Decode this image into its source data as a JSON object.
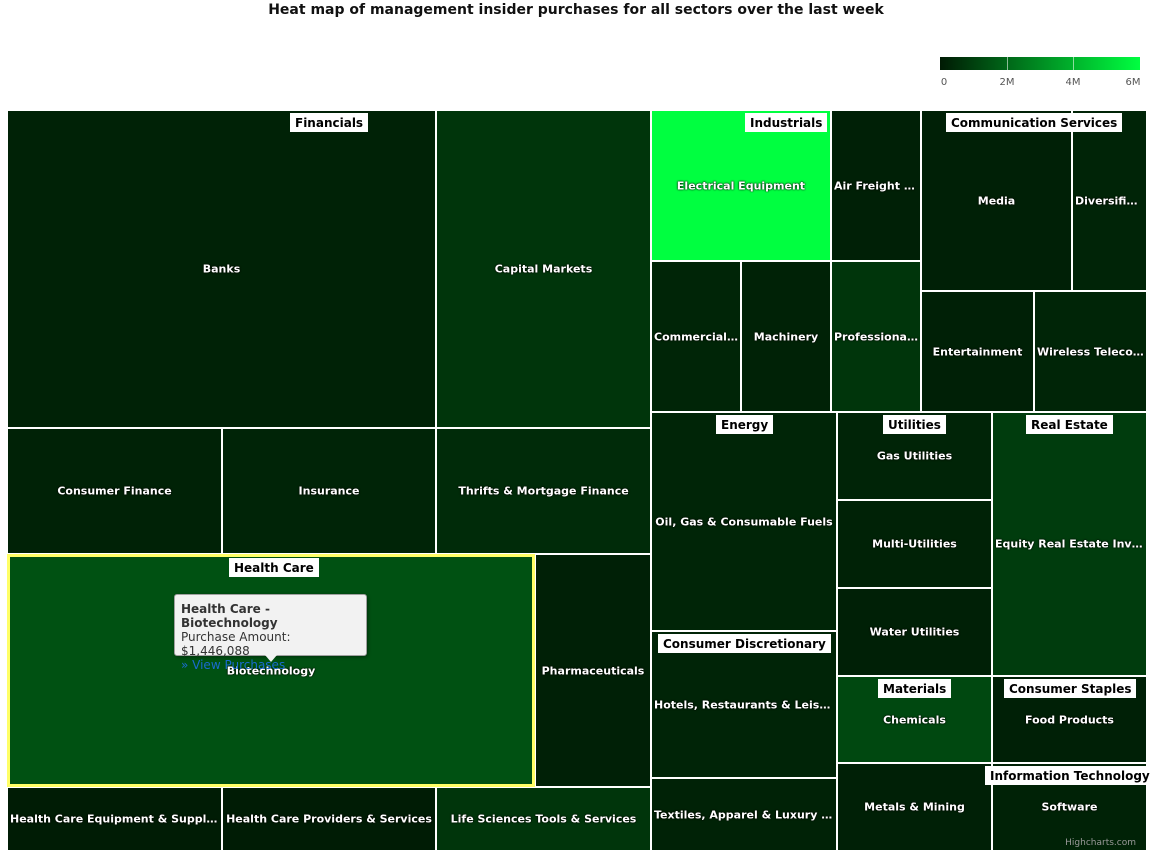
{
  "chart_data": {
    "type": "heatmap",
    "subtype": "treemap",
    "title": "Heat map of management insider purchases for all sectors over the last week",
    "color_axis": {
      "min": 0,
      "max": 6000000,
      "min_color": "#001a04",
      "max_color": "#00ff40",
      "tick_labels": [
        "0",
        "2M",
        "4M",
        "6M"
      ]
    },
    "sectors": [
      {
        "name": "Financials",
        "highlighted": false,
        "industries": [
          {
            "name": "Banks",
            "value": 200000
          },
          {
            "name": "Capital Markets",
            "value": 700000
          },
          {
            "name": "Consumer Finance",
            "value": 200000
          },
          {
            "name": "Insurance",
            "value": 250000
          },
          {
            "name": "Thrifts & Mortgage Finance",
            "value": 450000
          }
        ]
      },
      {
        "name": "Health Care",
        "highlighted": true,
        "industries": [
          {
            "name": "Biotechnology",
            "value": 1446088
          },
          {
            "name": "Pharmaceuticals",
            "value": 150000
          },
          {
            "name": "Health Care Equipment & Supplies",
            "value": 50000
          },
          {
            "name": "Health Care Providers & Services",
            "value": 50000
          },
          {
            "name": "Life Sciences Tools & Services",
            "value": 700000
          }
        ]
      },
      {
        "name": "Industrials",
        "highlighted": false,
        "industries": [
          {
            "name": "Electrical Equipment",
            "value": 6000000
          },
          {
            "name": "Air Freight & …",
            "value": 150000
          },
          {
            "name": "Commercial S…",
            "value": 300000
          },
          {
            "name": "Machinery",
            "value": 200000
          },
          {
            "name": "Professional …",
            "value": 700000
          }
        ]
      },
      {
        "name": "Communication Services",
        "highlighted": false,
        "industries": [
          {
            "name": "Media",
            "value": 150000
          },
          {
            "name": "Diversified…",
            "value": 250000
          },
          {
            "name": "Entertainment",
            "value": 150000
          },
          {
            "name": "Wireless Telecom…",
            "value": 300000
          }
        ]
      },
      {
        "name": "Energy",
        "highlighted": false,
        "industries": [
          {
            "name": "Oil, Gas & Consumable Fuels",
            "value": 300000
          }
        ]
      },
      {
        "name": "Utilities",
        "highlighted": false,
        "industries": [
          {
            "name": "Gas Utilities",
            "value": 250000
          },
          {
            "name": "Multi-Utilities",
            "value": 200000
          },
          {
            "name": "Water Utilities",
            "value": 150000
          }
        ]
      },
      {
        "name": "Real Estate",
        "highlighted": false,
        "industries": [
          {
            "name": "Equity Real Estate Invest…",
            "value": 900000
          }
        ]
      },
      {
        "name": "Consumer Discretionary",
        "highlighted": false,
        "industries": [
          {
            "name": "Hotels, Restaurants & Leisure",
            "value": 250000
          },
          {
            "name": "Textiles, Apparel & Luxury Go…",
            "value": 200000
          }
        ]
      },
      {
        "name": "Materials",
        "highlighted": false,
        "industries": [
          {
            "name": "Chemicals",
            "value": 1200000
          },
          {
            "name": "Metals & Mining",
            "value": 150000
          }
        ]
      },
      {
        "name": "Consumer Staples",
        "highlighted": false,
        "industries": [
          {
            "name": "Food Products",
            "value": 150000
          }
        ]
      },
      {
        "name": "Information Technology",
        "highlighted": false,
        "industries": [
          {
            "name": "Software",
            "value": 200000
          }
        ]
      }
    ]
  },
  "tooltip": {
    "title": "Health Care - Biotechnology",
    "line": "Purchase Amount: $1,446,088",
    "link": "» View Purchases"
  },
  "credits": "Highcharts.com"
}
